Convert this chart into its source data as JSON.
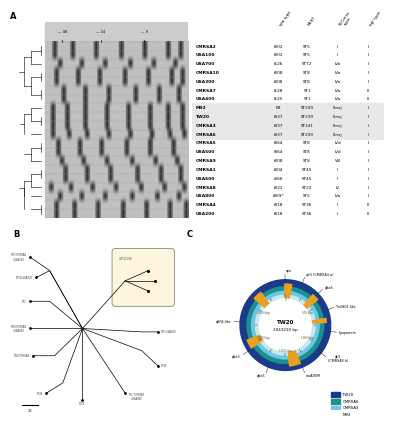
{
  "panel_A_label": "A",
  "panel_B_label": "B",
  "panel_C_label": "C",
  "table_rows": [
    [
      "CMRSA2",
      "t002",
      "ST5",
      "II",
      "II"
    ],
    [
      "USA100",
      "t002",
      "ST5",
      "II",
      "II"
    ],
    [
      "USA700",
      "t126",
      "ST72",
      "IVa",
      "I"
    ],
    [
      "CMRSA10",
      "t008",
      "ST8",
      "IVa",
      "I"
    ],
    [
      "USA300",
      "t008",
      "ST8",
      "IVa",
      "I"
    ],
    [
      "CMRSA7",
      "t128",
      "ST1",
      "IVa",
      "III"
    ],
    [
      "USA400",
      "t125",
      "ST1",
      "IVa",
      "III"
    ],
    [
      "M92",
      "NT",
      "ST239",
      "IIInvj",
      "I"
    ],
    [
      "TW20",
      "t037",
      "ST239",
      "IIInvj",
      "I"
    ],
    [
      "CMRSA3",
      "t037",
      "ST241",
      "IIInvj",
      "I"
    ],
    [
      "CMRSA6",
      "t037",
      "ST239",
      "IIInvj",
      "I"
    ],
    [
      "CMRSA5",
      "t064",
      "ST8",
      "IVd",
      "I"
    ],
    [
      "USA500",
      "t064",
      "ST8",
      "IVd",
      "I"
    ],
    [
      "CMRSA9",
      "t008",
      "ST8",
      "VIII",
      "I"
    ],
    [
      "CMRSA1",
      "t004",
      "ST45",
      "II",
      "I"
    ],
    [
      "USA600",
      "t266",
      "ST45",
      "II",
      "I"
    ],
    [
      "CMRSA8",
      "t022",
      "ST22",
      "IV",
      "I"
    ],
    [
      "USA800",
      "t069*",
      "ST5",
      "IVa",
      "II"
    ],
    [
      "CMRSA4",
      "t018",
      "ST36",
      "II",
      "III"
    ],
    [
      "USA200",
      "t018",
      "ST36",
      "II",
      "III"
    ]
  ],
  "highlighted_rows": [
    7,
    8,
    9,
    10
  ],
  "highlight_color": "#e8e8e8",
  "legend_items": [
    {
      "label": "TW20",
      "color": "#1a3a8a"
    },
    {
      "label": "CMRSA6",
      "color": "#1a9090"
    },
    {
      "label": "CMRSA3",
      "color": "#6ec6e6"
    },
    {
      "label": "M92",
      "color": "#c8e8f0"
    }
  ],
  "ring_colors": [
    "#c8e8f0",
    "#6ec6e6",
    "#1a9090",
    "#1a3a8a"
  ],
  "ring_radii": [
    0.62,
    0.68,
    0.74,
    0.8
  ],
  "ring_lwidths": [
    9,
    8,
    7,
    5
  ]
}
